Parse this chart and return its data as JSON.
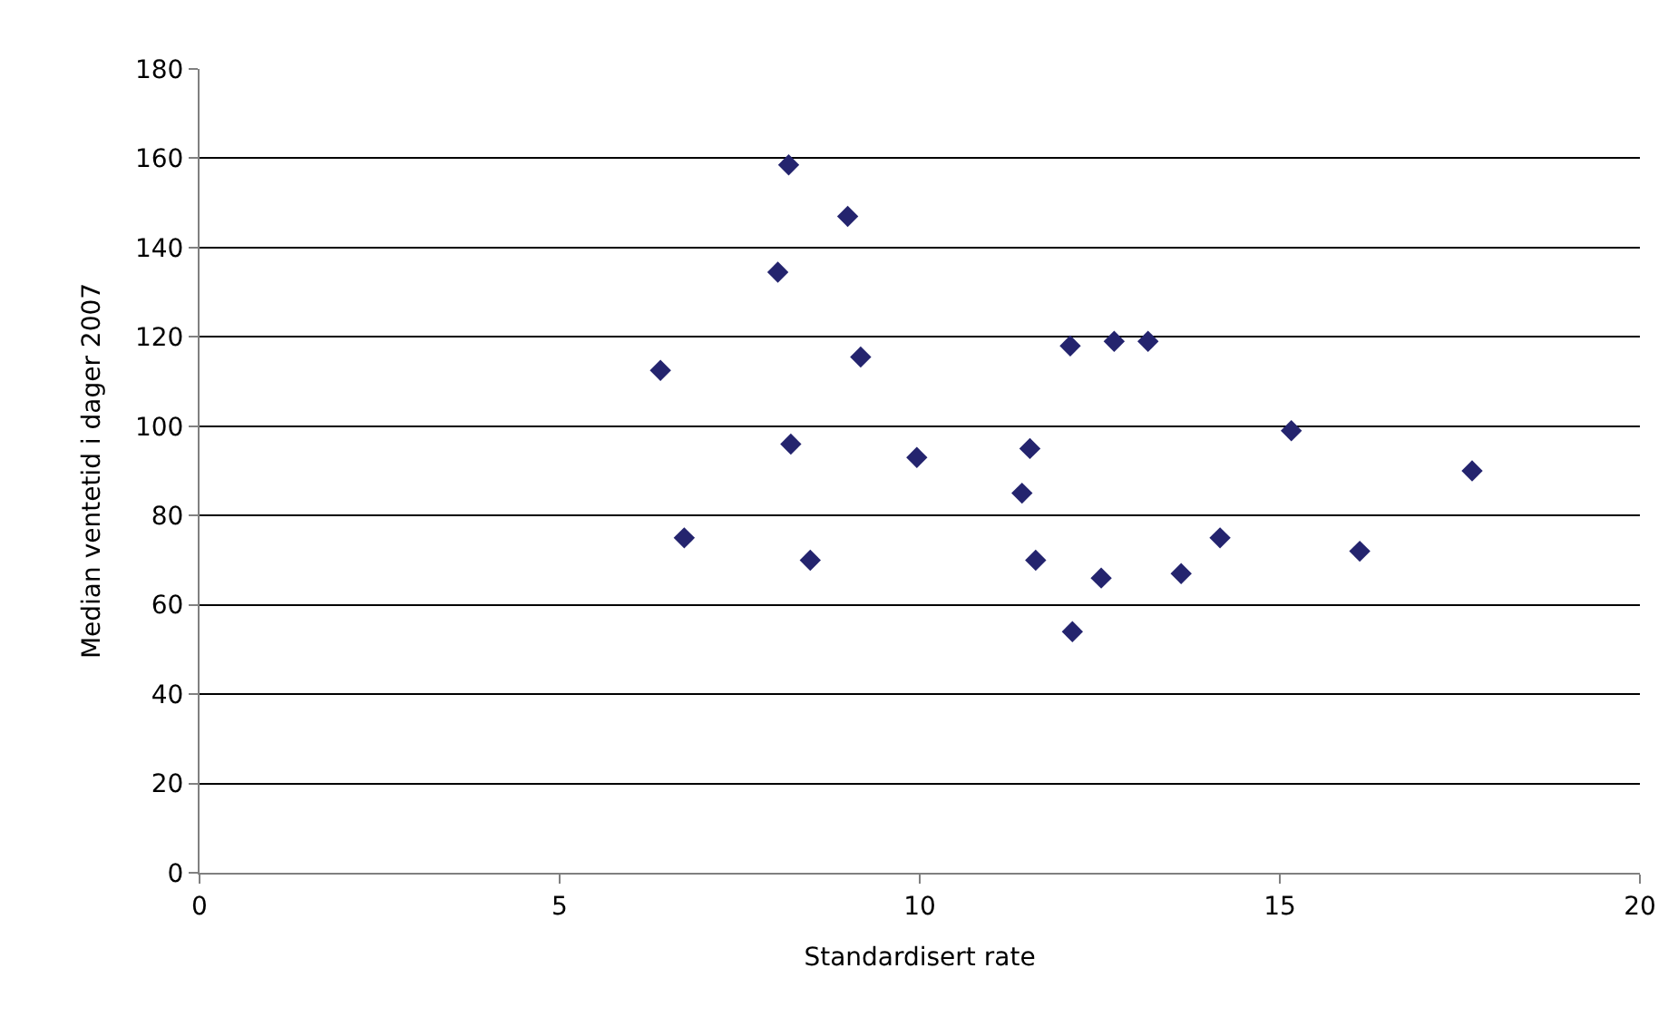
{
  "chart_data": {
    "type": "scatter",
    "xlabel": "Standardisert rate",
    "ylabel": "Median ventetid i dager 2007",
    "x": [
      8.18,
      9.0,
      8.03,
      6.4,
      9.18,
      12.09,
      12.7,
      13.17,
      8.21,
      9.96,
      11.53,
      11.42,
      6.73,
      8.48,
      11.61,
      12.52,
      12.12,
      15.16,
      17.67,
      14.17,
      16.11,
      13.63
    ],
    "values": [
      158.5,
      147,
      134.5,
      112.5,
      115.5,
      118,
      119,
      119,
      96,
      93,
      95,
      85,
      75,
      70,
      70,
      66,
      54,
      99,
      90,
      75,
      72,
      67
    ],
    "color": "#24246e",
    "marker": "diamond",
    "xlim": [
      0,
      20
    ],
    "xticks": [
      0,
      5,
      10,
      15,
      20
    ],
    "ylim": [
      0,
      180
    ],
    "yticks": [
      0,
      20,
      40,
      60,
      80,
      100,
      120,
      140,
      160,
      180
    ],
    "grid": "y",
    "legend": false
  }
}
